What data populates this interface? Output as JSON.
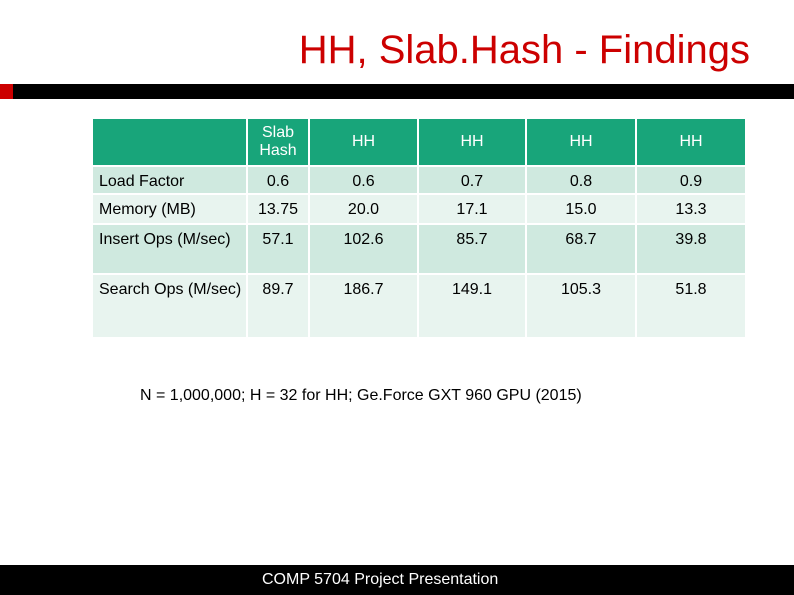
{
  "slide": {
    "title": "HH, Slab.Hash - Findings",
    "note": "N = 1,000,000; H = 32 for HH; Ge.Force GXT 960 GPU (2015)",
    "footer": "COMP 5704 Project Presentation"
  },
  "table": {
    "columns": [
      "",
      "Slab Hash",
      "HH",
      "HH",
      "HH",
      "HH"
    ],
    "rows": [
      {
        "label": "Load Factor",
        "values": [
          "0.6",
          "0.6",
          "0.7",
          "0.8",
          "0.9"
        ]
      },
      {
        "label": "Memory (MB)",
        "values": [
          "13.75",
          "20.0",
          "17.1",
          "15.0",
          "13.3"
        ]
      },
      {
        "label": "Insert Ops (M/sec)",
        "values": [
          "57.1",
          "102.6",
          "85.7",
          "68.7",
          "39.8"
        ]
      },
      {
        "label": "Search Ops (M/sec)",
        "values": [
          "89.7",
          "186.7",
          "149.1",
          "105.3",
          "51.8"
        ]
      }
    ]
  },
  "colors": {
    "title": "#cc0000",
    "header": "#18a57a",
    "row_dark": "#cfe9df",
    "row_light": "#e8f4ef"
  }
}
